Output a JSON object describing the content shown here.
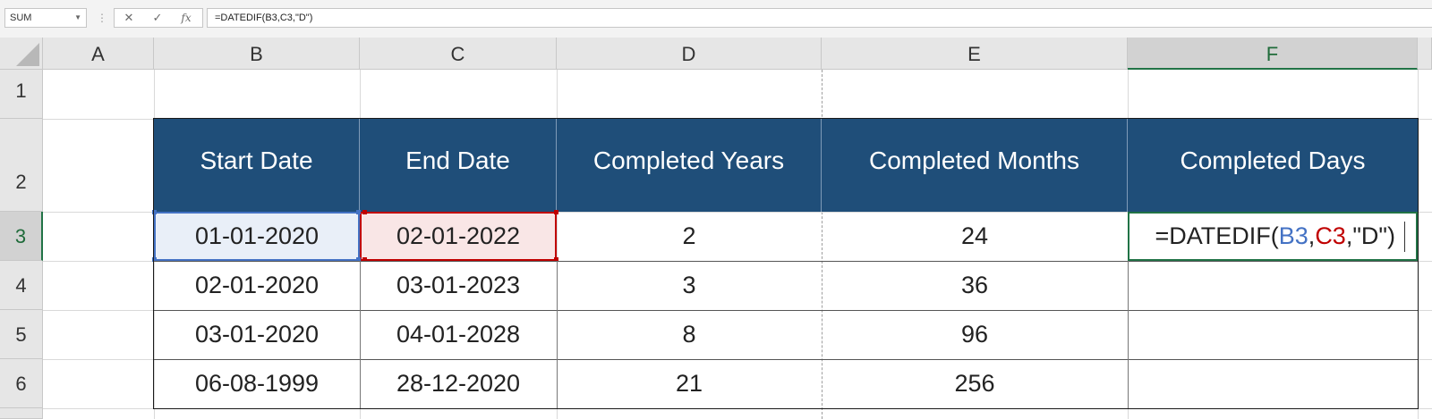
{
  "formula_bar": {
    "name_box": "SUM",
    "cancel_icon": "✕",
    "enter_icon": "✓",
    "fx_label": "fx",
    "formula": "=DATEDIF(B3,C3,\"D\")"
  },
  "columns": [
    "A",
    "B",
    "C",
    "D",
    "E",
    "F"
  ],
  "rows": [
    "1",
    "2",
    "3",
    "4",
    "5",
    "6"
  ],
  "table": {
    "headers": [
      "Start Date",
      "End Date",
      "Completed Years",
      "Completed Months",
      "Completed Days"
    ],
    "rows": [
      [
        "01-01-2020",
        "02-01-2022",
        "2",
        "24",
        ""
      ],
      [
        "02-01-2020",
        "03-01-2023",
        "3",
        "36",
        ""
      ],
      [
        "03-01-2020",
        "04-01-2028",
        "8",
        "96",
        ""
      ],
      [
        "06-08-1999",
        "28-12-2020",
        "21",
        "256",
        ""
      ]
    ]
  },
  "edit_cell": {
    "prefix": "=DATEDIF(",
    "ref1": "B3",
    "sep1": ",",
    "ref2": "C3",
    "suffix": ",\"D\")"
  },
  "colors": {
    "header_fill": "#1f4e79",
    "active_green": "#217346",
    "ref_blue": "#4472c4",
    "ref_red": "#c00000"
  }
}
